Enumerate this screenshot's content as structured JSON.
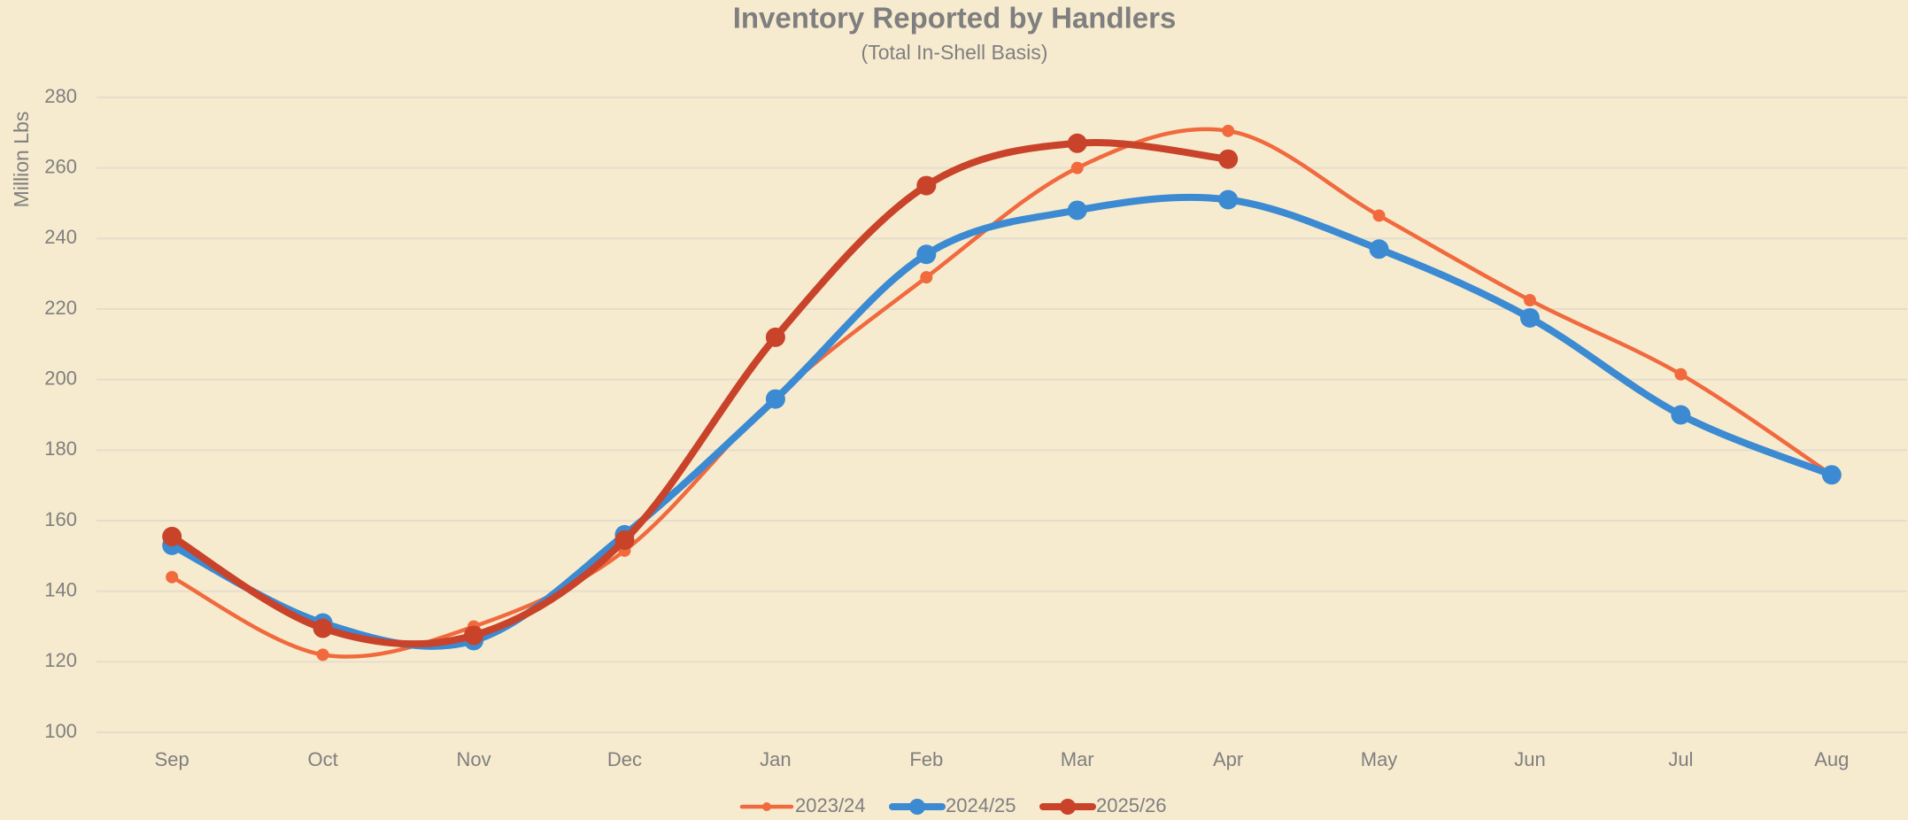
{
  "chart_data": {
    "type": "line",
    "title": "Inventory Reported by Handlers",
    "subtitle": "(Total In-Shell Basis)",
    "y_label": "Million Lbs",
    "categories": [
      "Sep",
      "Oct",
      "Nov",
      "Dec",
      "Jan",
      "Feb",
      "Mar",
      "Apr",
      "May",
      "Jun",
      "Jul",
      "Aug"
    ],
    "series": [
      {
        "name": "2023/24",
        "color": "#f06a3e",
        "values": [
          144,
          122,
          130,
          151.5,
          195,
          229,
          260,
          270.5,
          246.5,
          222.5,
          201.5,
          173
        ]
      },
      {
        "name": "2024/25",
        "color": "#3b8ad2",
        "values": [
          153,
          131,
          126,
          156,
          194.5,
          235.5,
          248,
          251,
          237,
          217.5,
          190,
          173
        ]
      },
      {
        "name": "2025/26",
        "color": "#c8432a",
        "values": [
          155.5,
          129.5,
          127.5,
          154.5,
          212,
          255,
          267,
          262.5,
          null,
          null,
          null,
          null
        ]
      }
    ],
    "ylim": [
      100,
      280
    ],
    "yticks": [
      100,
      120,
      140,
      160,
      180,
      200,
      220,
      240,
      260,
      280
    ],
    "grid": true,
    "legend": "bottom"
  }
}
